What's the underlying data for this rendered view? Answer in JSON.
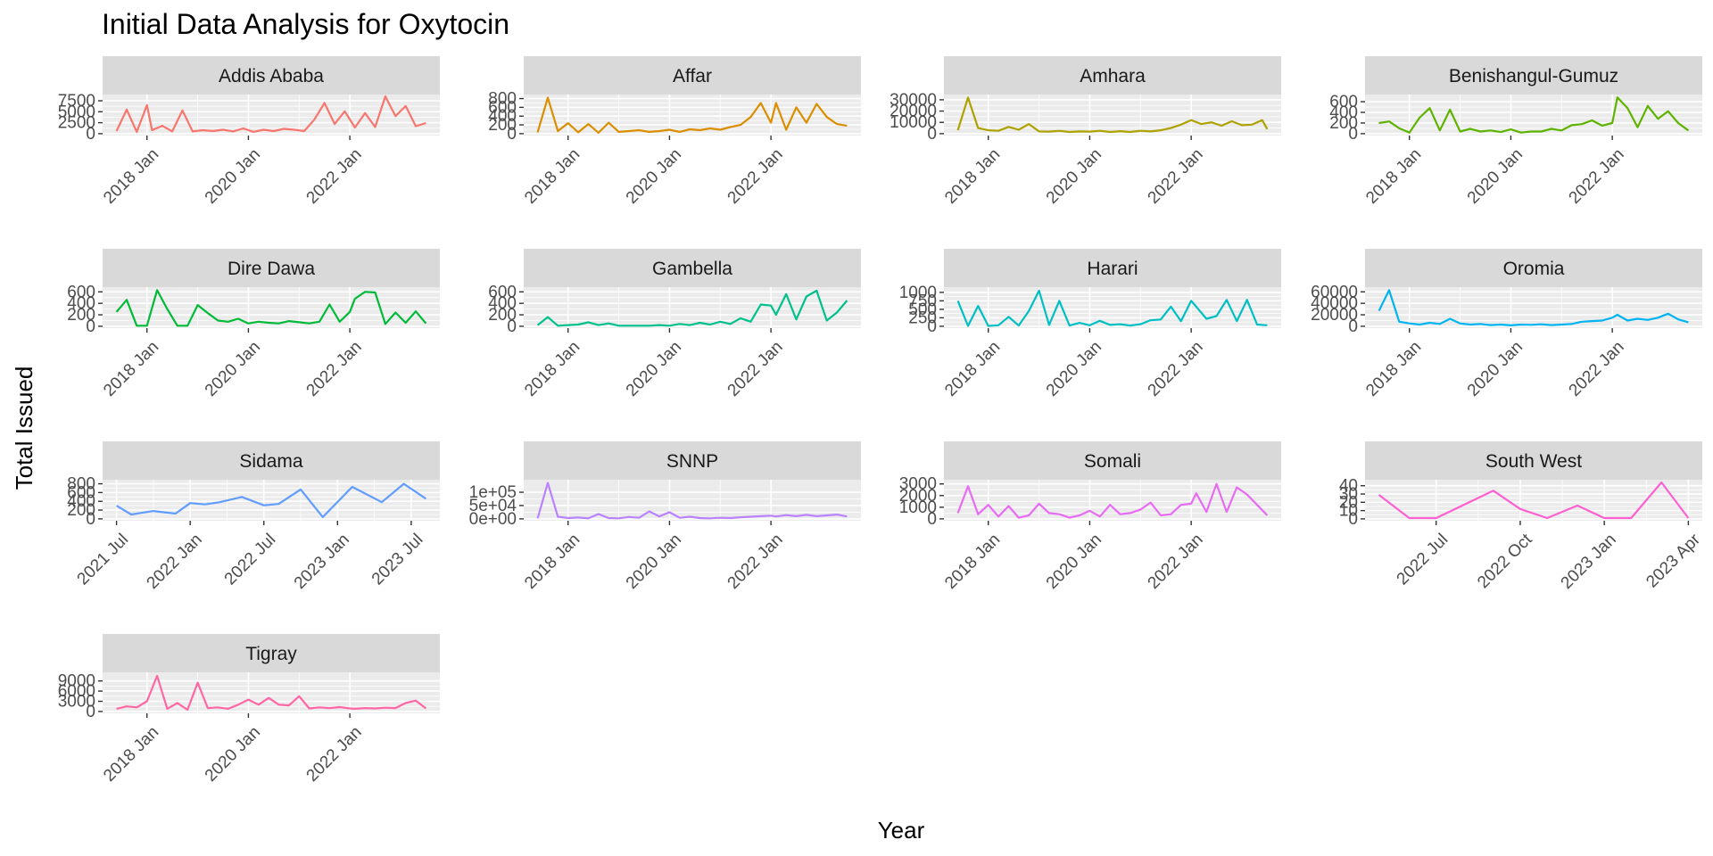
{
  "chart_data": {
    "type": "line",
    "title": "Initial Data Analysis for Oxytocin",
    "xlabel": "Year",
    "ylabel": "Total Issued",
    "grid": true,
    "legend": "none",
    "panels": [
      {
        "name": "Addis Ababa",
        "color": "#F8766D",
        "x_ticks": [
          "2018 Jan",
          "2020 Jan",
          "2022 Jan"
        ],
        "y_ticks": [
          "0",
          "2500",
          "5000",
          "7500"
        ],
        "ylim": [
          0,
          8500
        ],
        "x": [
          2017.4,
          2017.6,
          2017.8,
          2018.0,
          2018.1,
          2018.3,
          2018.5,
          2018.7,
          2018.9,
          2019.1,
          2019.3,
          2019.5,
          2019.7,
          2019.9,
          2020.1,
          2020.3,
          2020.5,
          2020.7,
          2020.9,
          2021.1,
          2021.3,
          2021.5,
          2021.7,
          2021.9,
          2022.1,
          2022.3,
          2022.5,
          2022.7,
          2022.9,
          2023.1,
          2023.3,
          2023.5
        ],
        "values": [
          600,
          5500,
          400,
          6500,
          800,
          1800,
          500,
          5300,
          500,
          800,
          600,
          900,
          500,
          1200,
          400,
          900,
          600,
          1100,
          900,
          600,
          3200,
          7000,
          2200,
          5100,
          1400,
          4700,
          1500,
          8500,
          4000,
          6300,
          1700,
          2400
        ]
      },
      {
        "name": "Affar",
        "color": "#DB8E00",
        "x_ticks": [
          "2018 Jan",
          "2020 Jan",
          "2022 Jan"
        ],
        "y_ticks": [
          "0",
          "200",
          "400",
          "600",
          "800"
        ],
        "ylim": [
          0,
          850
        ],
        "x": [
          2017.4,
          2017.6,
          2017.8,
          2018.0,
          2018.2,
          2018.4,
          2018.6,
          2018.8,
          2019.0,
          2019.2,
          2019.4,
          2019.6,
          2019.8,
          2020.0,
          2020.2,
          2020.4,
          2020.6,
          2020.8,
          2021.0,
          2021.2,
          2021.4,
          2021.6,
          2021.8,
          2022.0,
          2022.1,
          2022.3,
          2022.5,
          2022.7,
          2022.9,
          2023.1,
          2023.3,
          2023.5
        ],
        "values": [
          30,
          820,
          60,
          240,
          30,
          220,
          20,
          250,
          40,
          60,
          80,
          40,
          60,
          90,
          40,
          100,
          80,
          120,
          90,
          150,
          200,
          380,
          700,
          250,
          700,
          90,
          600,
          250,
          680,
          380,
          220,
          180
        ]
      },
      {
        "name": "Amhara",
        "color": "#AEA200",
        "x_ticks": [
          "2018 Jan",
          "2020 Jan",
          "2022 Jan"
        ],
        "y_ticks": [
          "0",
          "10000",
          "20000",
          "30000"
        ],
        "ylim": [
          0,
          33000
        ],
        "x": [
          2017.4,
          2017.6,
          2017.8,
          2018.0,
          2018.2,
          2018.4,
          2018.6,
          2018.8,
          2019.0,
          2019.2,
          2019.4,
          2019.6,
          2019.8,
          2020.0,
          2020.2,
          2020.4,
          2020.6,
          2020.8,
          2021.0,
          2021.2,
          2021.4,
          2021.6,
          2021.8,
          2022.0,
          2022.2,
          2022.4,
          2022.6,
          2022.8,
          2023.0,
          2023.2,
          2023.4,
          2023.5
        ],
        "values": [
          3000,
          32000,
          5000,
          3000,
          2500,
          6000,
          3500,
          8500,
          2000,
          1800,
          2500,
          1500,
          2000,
          1800,
          2500,
          1500,
          2200,
          1500,
          2500,
          2000,
          3000,
          5000,
          8000,
          12000,
          8500,
          10000,
          7000,
          11000,
          7500,
          8000,
          12000,
          4000
        ]
      },
      {
        "name": "Benishangul-Gumuz",
        "color": "#5EB300",
        "x_ticks": [
          "2018 Jan",
          "2020 Jan",
          "2022 Jan"
        ],
        "y_ticks": [
          "0",
          "200",
          "400",
          "600"
        ],
        "ylim": [
          0,
          700
        ],
        "x": [
          2017.4,
          2017.6,
          2017.8,
          2018.0,
          2018.2,
          2018.4,
          2018.6,
          2018.8,
          2019.0,
          2019.2,
          2019.4,
          2019.6,
          2019.8,
          2020.0,
          2020.2,
          2020.4,
          2020.6,
          2020.8,
          2021.0,
          2021.2,
          2021.4,
          2021.6,
          2021.8,
          2022.0,
          2022.1,
          2022.3,
          2022.5,
          2022.7,
          2022.9,
          2023.1,
          2023.3,
          2023.5
        ],
        "values": [
          200,
          230,
          100,
          20,
          300,
          480,
          60,
          450,
          40,
          90,
          40,
          60,
          30,
          80,
          20,
          40,
          40,
          90,
          60,
          160,
          180,
          250,
          150,
          200,
          680,
          480,
          120,
          520,
          280,
          420,
          200,
          60
        ]
      },
      {
        "name": "Dire Dawa",
        "color": "#00BA38",
        "x_ticks": [
          "2018 Jan",
          "2020 Jan",
          "2022 Jan"
        ],
        "y_ticks": [
          "0",
          "200",
          "400",
          "600"
        ],
        "ylim": [
          0,
          650
        ],
        "x": [
          2017.4,
          2017.6,
          2017.8,
          2018.0,
          2018.2,
          2018.4,
          2018.6,
          2018.8,
          2019.0,
          2019.2,
          2019.4,
          2019.6,
          2019.8,
          2020.0,
          2020.2,
          2020.4,
          2020.6,
          2020.8,
          2021.0,
          2021.2,
          2021.4,
          2021.6,
          2021.8,
          2022.0,
          2022.1,
          2022.3,
          2022.5,
          2022.7,
          2022.9,
          2023.1,
          2023.3,
          2023.5
        ],
        "values": [
          250,
          460,
          10,
          10,
          630,
          300,
          10,
          10,
          370,
          230,
          100,
          80,
          130,
          50,
          80,
          60,
          50,
          90,
          70,
          50,
          80,
          380,
          80,
          250,
          480,
          600,
          590,
          40,
          240,
          60,
          260,
          50
        ]
      },
      {
        "name": "Gambella",
        "color": "#00C08B",
        "x_ticks": [
          "2018 Jan",
          "2020 Jan",
          "2022 Jan"
        ],
        "y_ticks": [
          "0",
          "200",
          "400",
          "600"
        ],
        "ylim": [
          0,
          650
        ],
        "x": [
          2017.4,
          2017.6,
          2017.8,
          2018.0,
          2018.2,
          2018.4,
          2018.6,
          2018.8,
          2019.0,
          2019.2,
          2019.4,
          2019.6,
          2019.8,
          2020.0,
          2020.2,
          2020.4,
          2020.6,
          2020.8,
          2021.0,
          2021.2,
          2021.4,
          2021.6,
          2021.8,
          2022.0,
          2022.1,
          2022.3,
          2022.5,
          2022.7,
          2022.9,
          2023.1,
          2023.3,
          2023.5
        ],
        "values": [
          20,
          160,
          10,
          20,
          30,
          70,
          20,
          50,
          10,
          10,
          10,
          10,
          20,
          10,
          40,
          20,
          60,
          30,
          80,
          40,
          140,
          80,
          380,
          360,
          200,
          560,
          120,
          520,
          620,
          100,
          240,
          450
        ]
      },
      {
        "name": "Harari",
        "color": "#00BFC4",
        "x_ticks": [
          "2018 Jan",
          "2020 Jan",
          "2022 Jan"
        ],
        "y_ticks": [
          "0",
          "250",
          "500",
          "750",
          "1000"
        ],
        "ylim": [
          0,
          1100
        ],
        "x": [
          2017.4,
          2017.6,
          2017.8,
          2018.0,
          2018.2,
          2018.4,
          2018.6,
          2018.8,
          2019.0,
          2019.2,
          2019.4,
          2019.6,
          2019.8,
          2020.0,
          2020.2,
          2020.4,
          2020.6,
          2020.8,
          2021.0,
          2021.2,
          2021.4,
          2021.6,
          2021.8,
          2022.0,
          2022.1,
          2022.3,
          2022.5,
          2022.7,
          2022.9,
          2023.1,
          2023.3,
          2023.5
        ],
        "values": [
          750,
          10,
          600,
          10,
          30,
          280,
          20,
          450,
          1050,
          40,
          750,
          20,
          100,
          30,
          160,
          40,
          60,
          20,
          60,
          180,
          200,
          580,
          150,
          750,
          580,
          220,
          300,
          780,
          150,
          780,
          50,
          30
        ]
      },
      {
        "name": "Oromia",
        "color": "#00B4F0",
        "x_ticks": [
          "2018 Jan",
          "2020 Jan",
          "2022 Jan"
        ],
        "y_ticks": [
          "0",
          "20000",
          "40000",
          "60000"
        ],
        "ylim": [
          0,
          65000
        ],
        "x": [
          2017.4,
          2017.6,
          2017.8,
          2018.0,
          2018.2,
          2018.4,
          2018.6,
          2018.8,
          2019.0,
          2019.2,
          2019.4,
          2019.6,
          2019.8,
          2020.0,
          2020.2,
          2020.4,
          2020.6,
          2020.8,
          2021.0,
          2021.2,
          2021.4,
          2021.6,
          2021.8,
          2022.0,
          2022.1,
          2022.3,
          2022.5,
          2022.7,
          2022.9,
          2023.1,
          2023.3,
          2023.5
        ],
        "values": [
          27000,
          63000,
          8000,
          5000,
          3000,
          6000,
          4000,
          13000,
          5000,
          3000,
          4000,
          2000,
          3000,
          1500,
          3000,
          2500,
          3500,
          2000,
          3000,
          4000,
          8000,
          9000,
          10000,
          15000,
          20000,
          10000,
          13000,
          11000,
          15000,
          22000,
          12000,
          7000
        ]
      },
      {
        "name": "Sidama",
        "color": "#619CFF",
        "x_ticks": [
          "2021 Jul",
          "2022 Jan",
          "2022 Jul",
          "2023 Jan",
          "2023 Jul"
        ],
        "y_ticks": [
          "0",
          "200",
          "400",
          "600",
          "800"
        ],
        "ylim": [
          0,
          850
        ],
        "x": [
          2021.5,
          2021.6,
          2021.75,
          2021.9,
          2022.0,
          2022.1,
          2022.2,
          2022.35,
          2022.5,
          2022.6,
          2022.75,
          2022.9,
          2023.1,
          2023.3,
          2023.45,
          2023.6
        ],
        "values": [
          300,
          100,
          180,
          120,
          360,
          330,
          380,
          500,
          310,
          340,
          670,
          40,
          730,
          380,
          800,
          460
        ]
      },
      {
        "name": "SNNP",
        "color": "#B983FF",
        "x_ticks": [
          "2018 Jan",
          "2020 Jan",
          "2022 Jan"
        ],
        "y_ticks": [
          "0e+00",
          "5e+04",
          "1e+05"
        ],
        "ylim": [
          0,
          140000
        ],
        "x": [
          2017.4,
          2017.6,
          2017.8,
          2018.0,
          2018.2,
          2018.4,
          2018.6,
          2018.8,
          2019.0,
          2019.2,
          2019.4,
          2019.6,
          2019.8,
          2020.0,
          2020.2,
          2020.4,
          2020.6,
          2020.8,
          2021.0,
          2021.2,
          2021.4,
          2021.6,
          2021.8,
          2022.0,
          2022.1,
          2022.3,
          2022.5,
          2022.7,
          2022.9,
          2023.1,
          2023.3,
          2023.5
        ],
        "values": [
          2000,
          135000,
          8000,
          3000,
          5000,
          2000,
          18000,
          3000,
          2000,
          7000,
          4000,
          28000,
          9000,
          25000,
          4000,
          8000,
          3000,
          2000,
          4000,
          3000,
          6000,
          8000,
          10000,
          12000,
          9000,
          14000,
          10000,
          15000,
          10000,
          13000,
          16000,
          9000
        ]
      },
      {
        "name": "Somali",
        "color": "#E76BF3",
        "x_ticks": [
          "2018 Jan",
          "2020 Jan",
          "2022 Jan"
        ],
        "y_ticks": [
          "0",
          "1000",
          "2000",
          "3000"
        ],
        "ylim": [
          0,
          3200
        ],
        "x": [
          2017.4,
          2017.6,
          2017.8,
          2018.0,
          2018.2,
          2018.4,
          2018.6,
          2018.8,
          2019.0,
          2019.2,
          2019.4,
          2019.6,
          2019.8,
          2020.0,
          2020.2,
          2020.4,
          2020.6,
          2020.8,
          2021.0,
          2021.2,
          2021.4,
          2021.6,
          2021.8,
          2022.0,
          2022.1,
          2022.3,
          2022.5,
          2022.7,
          2022.9,
          2023.1,
          2023.3,
          2023.5
        ],
        "values": [
          500,
          2800,
          400,
          1200,
          200,
          1100,
          100,
          300,
          1300,
          500,
          400,
          100,
          300,
          700,
          200,
          1200,
          400,
          500,
          800,
          1400,
          300,
          400,
          1200,
          1300,
          2200,
          600,
          3000,
          600,
          2700,
          2100,
          1200,
          300
        ]
      },
      {
        "name": "South West",
        "color": "#FD61D1",
        "x_ticks": [
          "2022 Jul",
          "2022 Oct",
          "2023 Jan",
          "2023 Apr"
        ],
        "y_ticks": [
          "0",
          "10",
          "20",
          "30",
          "40"
        ],
        "ylim": [
          0,
          45
        ],
        "x": [
          2022.33,
          2022.42,
          2022.5,
          2022.67,
          2022.75,
          2022.83,
          2022.92,
          2023.0,
          2023.08,
          2023.17,
          2023.25
        ],
        "values": [
          29,
          1,
          1,
          34,
          12,
          1,
          16,
          1,
          1,
          44,
          1
        ]
      },
      {
        "name": "Tigray",
        "color": "#FF67A4",
        "x_ticks": [
          "2018 Jan",
          "2020 Jan",
          "2022 Jan"
        ],
        "y_ticks": [
          "0",
          "3000",
          "6000",
          "9000"
        ],
        "ylim": [
          0,
          11000
        ],
        "x": [
          2017.4,
          2017.6,
          2017.8,
          2018.0,
          2018.2,
          2018.4,
          2018.6,
          2018.8,
          2019.0,
          2019.2,
          2019.4,
          2019.6,
          2019.8,
          2020.0,
          2020.2,
          2020.4,
          2020.6,
          2020.8,
          2021.0,
          2021.2,
          2021.4,
          2021.6,
          2021.8,
          2022.0,
          2022.1,
          2022.3,
          2022.5,
          2022.7,
          2022.9,
          2023.1,
          2023.3,
          2023.5
        ],
        "values": [
          800,
          1500,
          1200,
          3000,
          10500,
          800,
          2500,
          500,
          8500,
          1000,
          1200,
          800,
          2000,
          3500,
          2000,
          4000,
          2000,
          1800,
          4500,
          900,
          1200,
          1000,
          1300,
          900,
          800,
          1000,
          900,
          1100,
          1000,
          2500,
          3200,
          900
        ]
      }
    ]
  }
}
